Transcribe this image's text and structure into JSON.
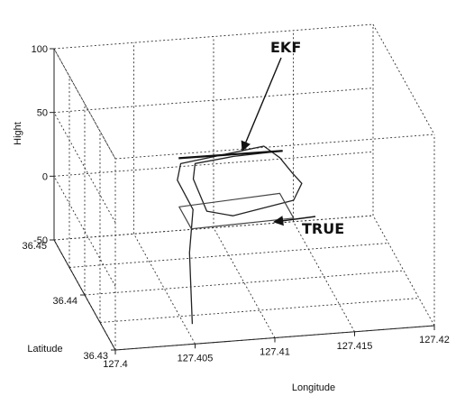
{
  "chart_data": {
    "type": "line3d",
    "zlabel": "Hight",
    "ylabel": "Latitude",
    "xlabel": "Longitude",
    "xlim": [
      127.4,
      127.42
    ],
    "ylim": [
      36.43,
      36.45
    ],
    "zlim": [
      -50,
      100
    ],
    "x_ticks": [
      "127.4",
      "127.405",
      "127.41",
      "127.415",
      "127.42"
    ],
    "y_ticks": [
      "36.45",
      "36.44",
      "36.43"
    ],
    "z_ticks": [
      "100",
      "50",
      "0",
      "-50"
    ],
    "grid": true,
    "series": [
      {
        "name": "EKF",
        "color": "#222222",
        "points": [
          [
            127.4055,
            36.4335,
            -50
          ],
          [
            127.4058,
            36.436,
            -5
          ],
          [
            127.4066,
            36.439,
            15
          ],
          [
            127.406,
            36.441,
            30
          ],
          [
            127.4065,
            36.4425,
            36
          ],
          [
            127.412,
            36.444,
            38
          ],
          [
            127.413,
            36.444,
            28
          ],
          [
            127.4135,
            36.4425,
            22
          ],
          [
            127.4138,
            36.441,
            20
          ],
          [
            127.413,
            36.4395,
            14
          ],
          [
            127.409,
            36.4385,
            10
          ],
          [
            127.4075,
            36.4392,
            12
          ],
          [
            127.407,
            36.441,
            30
          ],
          [
            127.4075,
            36.443,
            33
          ],
          [
            127.41,
            36.4435,
            34
          ],
          [
            127.4131,
            36.4436,
            35
          ]
        ]
      },
      {
        "name": "TRUE",
        "color": "#444444",
        "points": [
          [
            127.4065,
            36.439,
            0
          ],
          [
            127.4065,
            36.443,
            0
          ],
          [
            127.413,
            36.444,
            0
          ],
          [
            127.413,
            36.4395,
            0
          ],
          [
            127.4065,
            36.439,
            0
          ]
        ]
      }
    ],
    "annotations": [
      {
        "text": "EKF",
        "target": [
          127.4105,
          36.4438,
          34
        ]
      },
      {
        "text": "TRUE",
        "target": [
          127.4115,
          36.4398,
          0
        ]
      }
    ]
  }
}
